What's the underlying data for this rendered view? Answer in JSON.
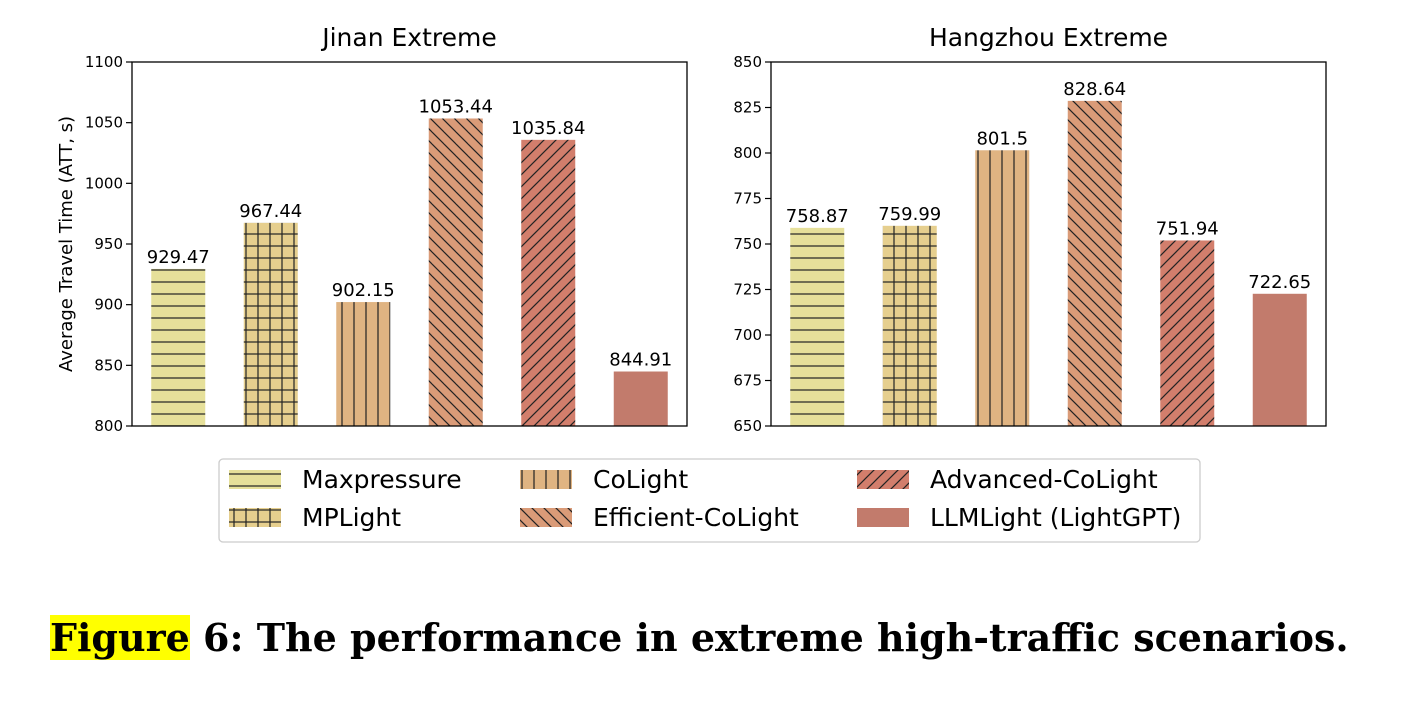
{
  "chart_data": {
    "type": "bar",
    "ylabel": "Average Travel Time (ATT, s)",
    "series_style": [
      {
        "name": "Maxpressure",
        "color": "#e6e09a",
        "hatch": "horizontal"
      },
      {
        "name": "MPLight",
        "color": "#e6cf8e",
        "hatch": "grid"
      },
      {
        "name": "CoLight",
        "color": "#e0b482",
        "hatch": "vertical"
      },
      {
        "name": "Efficient-CoLight",
        "color": "#da9b78",
        "hatch": "backslash"
      },
      {
        "name": "Advanced-CoLight",
        "color": "#d27e6c",
        "hatch": "slash"
      },
      {
        "name": "LLMLight (LightGPT)",
        "color": "#c27b6c",
        "hatch": "none"
      }
    ],
    "legend_position": "bottom-center",
    "subplots": [
      {
        "title": "Jinan Extreme",
        "ylim": [
          800,
          1100
        ],
        "yticks": [
          800,
          850,
          900,
          950,
          1000,
          1050,
          1100
        ],
        "values": [
          929.47,
          967.44,
          902.15,
          1053.44,
          1035.84,
          844.91
        ],
        "labels": [
          "929.47",
          "967.44",
          "902.15",
          "1053.44",
          "1035.84",
          "844.91"
        ]
      },
      {
        "title": "Hangzhou Extreme",
        "ylim": [
          650,
          850
        ],
        "yticks": [
          650,
          675,
          700,
          725,
          750,
          775,
          800,
          825,
          850
        ],
        "values": [
          758.87,
          759.99,
          801.5,
          828.64,
          751.94,
          722.65
        ],
        "labels": [
          "758.87",
          "759.99",
          "801.5",
          "828.64",
          "751.94",
          "722.65"
        ]
      }
    ]
  },
  "caption": {
    "highlight": "Figure",
    "text": " 6: The performance in extreme high-traffic scenarios."
  }
}
